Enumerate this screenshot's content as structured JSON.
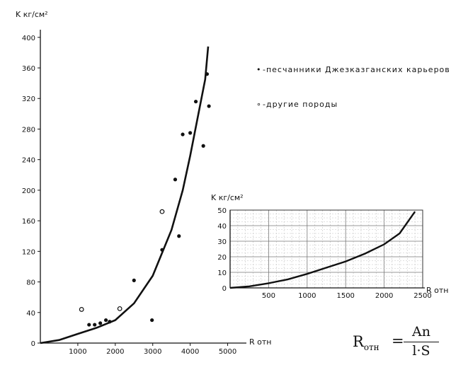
{
  "chart_data": [
    {
      "type": "scatter",
      "title": "",
      "ylabel": "K кг/см²",
      "xlabel": "R отн",
      "xlim": [
        0,
        5500
      ],
      "ylim": [
        0,
        410
      ],
      "x_ticks": [
        "1000",
        "2000",
        "3000",
        "4000",
        "5000"
      ],
      "y_ticks": [
        "0",
        "40",
        "80",
        "120",
        "160",
        "200",
        "240",
        "280",
        "320",
        "360",
        "400"
      ],
      "grid": false,
      "legend_position": "top-right",
      "legend": [
        {
          "marker": "•",
          "label": "-песчанники Джезказганских карьеров"
        },
        {
          "marker": "∘",
          "label": "-другие породы"
        }
      ],
      "series": [
        {
          "name": "песчанники Джезказганских карьеров",
          "marker": "filled",
          "x": [
            1300,
            1450,
            1600,
            1750,
            1850,
            2500,
            2980,
            3250,
            3600,
            3700,
            3800,
            4000,
            4150,
            4350,
            4450,
            4500
          ],
          "y": [
            24,
            24,
            26,
            30,
            28,
            82,
            30,
            122,
            214,
            140,
            273,
            275,
            316,
            258,
            352,
            310
          ]
        },
        {
          "name": "другие породы",
          "marker": "open",
          "x": [
            1100,
            2120,
            3250
          ],
          "y": [
            44,
            45,
            172
          ]
        },
        {
          "name": "fit",
          "style": "line",
          "x": [
            0,
            500,
            1000,
            1500,
            2000,
            2500,
            3000,
            3500,
            3800,
            4000,
            4200,
            4400,
            4480
          ],
          "y": [
            0,
            4,
            12,
            20,
            30,
            52,
            88,
            148,
            200,
            245,
            295,
            345,
            388
          ]
        }
      ]
    },
    {
      "type": "line",
      "title": "",
      "ylabel": "K кг/см²",
      "xlabel": "R отн",
      "xlim": [
        0,
        2500
      ],
      "ylim": [
        0,
        50
      ],
      "x_ticks": [
        "500",
        "1000",
        "1500",
        "2000",
        "2500"
      ],
      "y_ticks": [
        "0",
        "10",
        "20",
        "30",
        "40",
        "50"
      ],
      "grid": true,
      "series": [
        {
          "name": "fit-inset",
          "x": [
            0,
            250,
            500,
            750,
            1000,
            1250,
            1500,
            1750,
            2000,
            2200,
            2400
          ],
          "y": [
            0,
            1,
            3,
            5.5,
            9,
            13,
            17,
            22,
            28,
            35,
            49
          ]
        }
      ]
    }
  ],
  "formula": {
    "lhs": "R",
    "lhs_sub": "отн",
    "eq": "=",
    "numerator": "An",
    "denominator": "l·S"
  }
}
